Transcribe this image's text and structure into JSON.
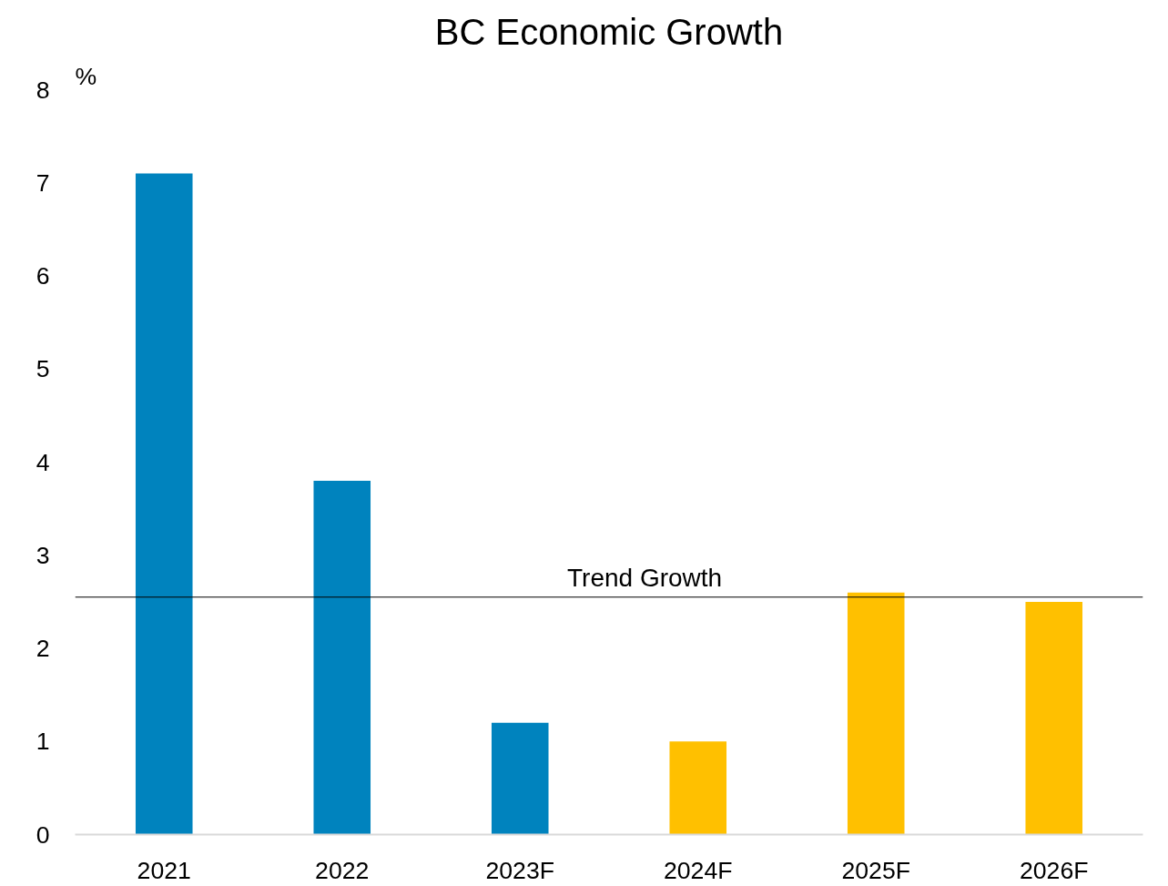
{
  "chart_data": {
    "type": "bar",
    "title": "BC Economic Growth",
    "ylabel": "%",
    "categories": [
      "2021",
      "2022",
      "2023F",
      "2024F",
      "2025F",
      "2026F"
    ],
    "values": [
      7.1,
      3.8,
      1.2,
      1.0,
      2.6,
      2.5
    ],
    "colors": [
      "#0083be",
      "#0083be",
      "#0083be",
      "#ffc000",
      "#ffc000",
      "#ffc000"
    ],
    "ylim": [
      0,
      8
    ],
    "yticks": [
      0,
      1,
      2,
      3,
      4,
      5,
      6,
      7,
      8
    ],
    "grid": false,
    "ref_lines": [
      {
        "axis": "y",
        "value": 2.55,
        "label": "Trend Growth",
        "color": "#000000",
        "line_style": "solid"
      }
    ]
  }
}
